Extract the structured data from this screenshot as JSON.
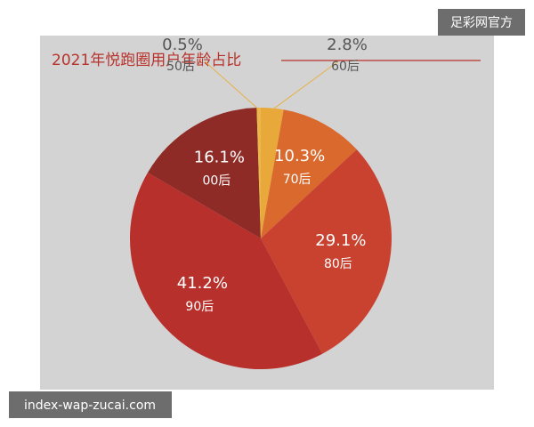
{
  "chart_data": {
    "type": "pie",
    "title": "2021年悦跑圈用户年龄占比",
    "categories": [
      "60后",
      "70后",
      "80后",
      "90后",
      "00后",
      "50后"
    ],
    "values": [
      2.8,
      10.3,
      29.1,
      41.2,
      16.1,
      0.5
    ],
    "value_labels": [
      "2.8%",
      "10.3%",
      "29.1%",
      "41.2%",
      "16.1%",
      "0.5%"
    ],
    "colors": [
      "#e9a93a",
      "#d9692c",
      "#c9412f",
      "#b7302b",
      "#8f2b26",
      "#eab84a"
    ]
  },
  "watermarks": [
    "足彩网官方",
    "index-wap-zucai.com"
  ]
}
